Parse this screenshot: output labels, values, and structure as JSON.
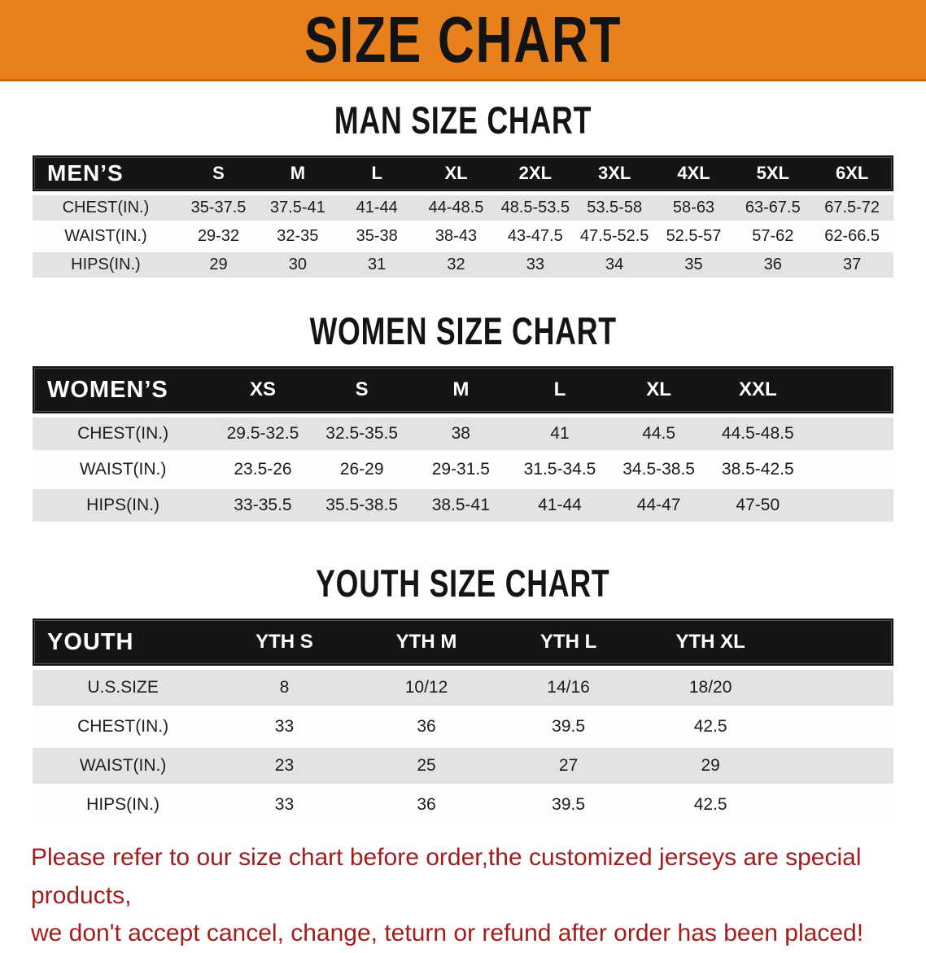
{
  "banner": {
    "title": "SIZE CHART"
  },
  "colors": {
    "banner_bg": "#e8811b",
    "banner_border": "#bf6a10",
    "header_bar": "#151515",
    "row_gray": "#e3e3e5",
    "disclaimer_red": "#a31d1d"
  },
  "sections": [
    {
      "heading": "MAN SIZE CHART",
      "corner": "MEN’S",
      "columns": [
        "S",
        "M",
        "L",
        "XL",
        "2XL",
        "3XL",
        "4XL",
        "5XL",
        "6XL"
      ],
      "rows": [
        {
          "label": "CHEST(IN.)",
          "values": [
            "35-37.5",
            "37.5-41",
            "41-44",
            "44-48.5",
            "48.5-53.5",
            "53.5-58",
            "58-63",
            "63-67.5",
            "67.5-72"
          ]
        },
        {
          "label": "WAIST(IN.)",
          "values": [
            "29-32",
            "32-35",
            "35-38",
            "38-43",
            "43-47.5",
            "47.5-52.5",
            "52.5-57",
            "57-62",
            "62-66.5"
          ]
        },
        {
          "label": "HIPS(IN.)",
          "values": [
            "29",
            "30",
            "31",
            "32",
            "33",
            "34",
            "35",
            "36",
            "37"
          ]
        }
      ]
    },
    {
      "heading": "WOMEN SIZE CHART",
      "corner": "WOMEN’S",
      "columns": [
        "XS",
        "S",
        "M",
        "L",
        "XL",
        "XXL"
      ],
      "rows": [
        {
          "label": "CHEST(IN.)",
          "values": [
            "29.5-32.5",
            "32.5-35.5",
            "38",
            "41",
            "44.5",
            "44.5-48.5"
          ]
        },
        {
          "label": "WAIST(IN.)",
          "values": [
            "23.5-26",
            "26-29",
            "29-31.5",
            "31.5-34.5",
            "34.5-38.5",
            "38.5-42.5"
          ]
        },
        {
          "label": "HIPS(IN.)",
          "values": [
            "33-35.5",
            "35.5-38.5",
            "38.5-41",
            "41-44",
            "44-47",
            "47-50"
          ]
        }
      ]
    },
    {
      "heading": "YOUTH SIZE CHART",
      "corner": "YOUTH",
      "columns": [
        "YTH S",
        "YTH M",
        "YTH L",
        "YTH XL"
      ],
      "rows": [
        {
          "label": "U.S.SIZE",
          "values": [
            "8",
            "10/12",
            "14/16",
            "18/20"
          ]
        },
        {
          "label": "CHEST(IN.)",
          "values": [
            "33",
            "36",
            "39.5",
            "42.5"
          ]
        },
        {
          "label": "WAIST(IN.)",
          "values": [
            "23",
            "25",
            "27",
            "29"
          ]
        },
        {
          "label": "HIPS(IN.)",
          "values": [
            "33",
            "36",
            "39.5",
            "42.5"
          ]
        }
      ]
    }
  ],
  "disclaimer": {
    "line1": "Please refer to our size chart before order,the customized jerseys are special products,",
    "line2": "we don't accept cancel, change, teturn or refund after order has been placed!"
  }
}
